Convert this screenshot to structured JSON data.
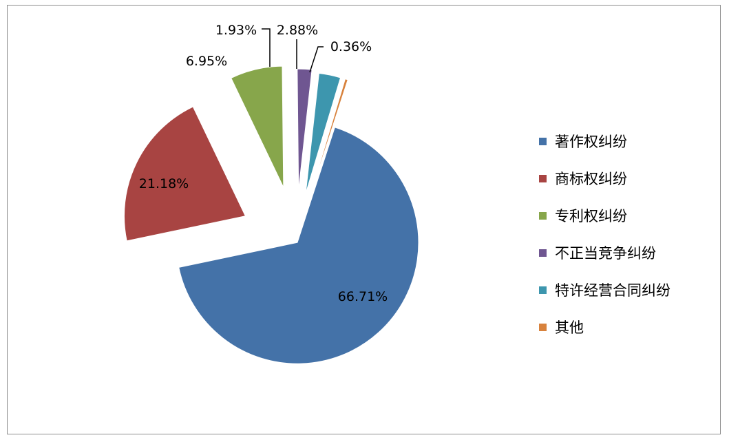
{
  "chart_data": {
    "type": "pie",
    "exploded": true,
    "legend_position": "right",
    "slices": [
      {
        "name": "著作权纠纷",
        "value": 66.71,
        "label": "66.71%",
        "color": "#4472A8"
      },
      {
        "name": "商标权纠纷",
        "value": 21.18,
        "label": "21.18%",
        "color": "#A84442"
      },
      {
        "name": "专利权纠纷",
        "value": 6.95,
        "label": "6.95%",
        "color": "#87A64B"
      },
      {
        "name": "不正当竞争纠纷",
        "value": 1.93,
        "label": "1.93%",
        "color": "#6F5691"
      },
      {
        "name": "特许经营合同纠纷",
        "value": 2.88,
        "label": "2.88%",
        "color": "#3D96AE"
      },
      {
        "name": "其他",
        "value": 0.36,
        "label": "0.36%",
        "color": "#D8823D"
      }
    ]
  }
}
